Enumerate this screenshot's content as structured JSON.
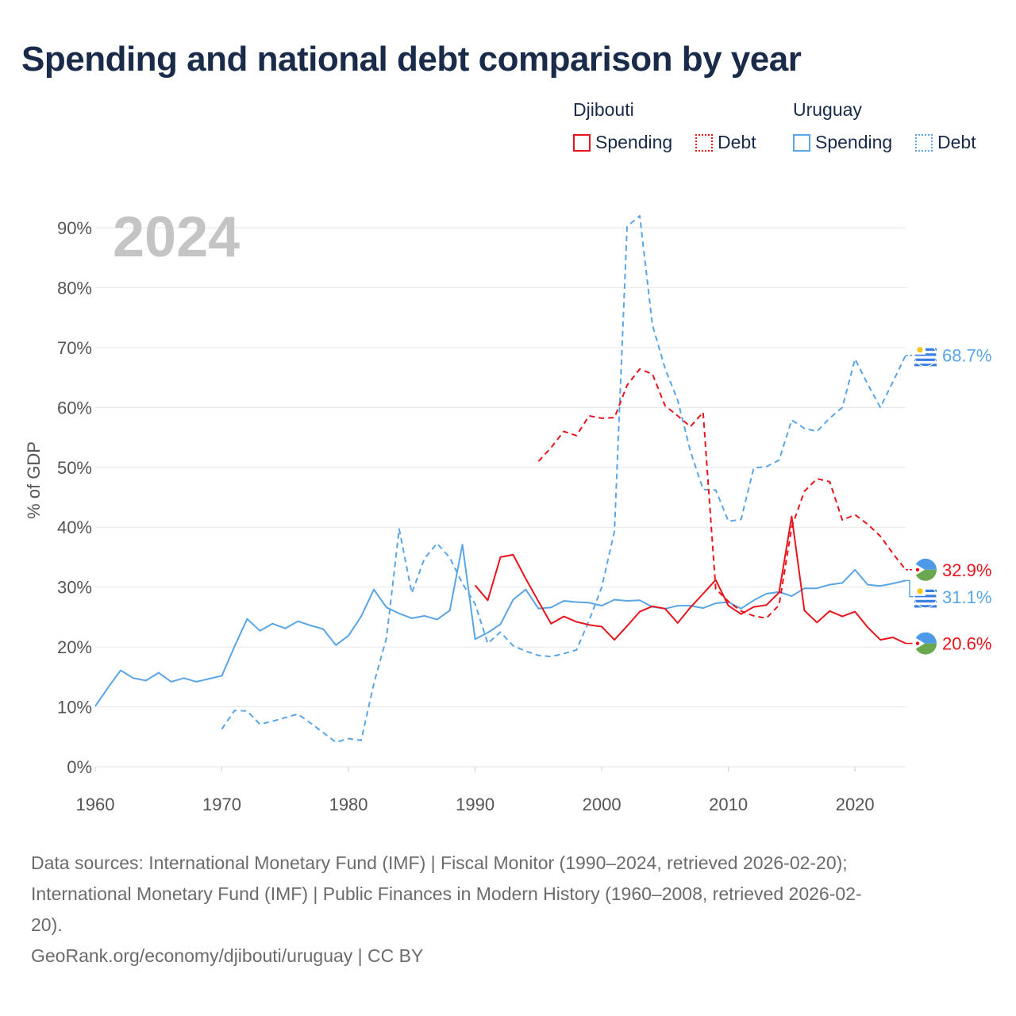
{
  "title": "Spending and national debt comparison by year",
  "legend": {
    "groups": [
      {
        "name": "Djibouti",
        "color": "#e8141c",
        "items": [
          "Spending",
          "Debt"
        ]
      },
      {
        "name": "Uruguay",
        "color": "#5aa5e6",
        "items": [
          "Spending",
          "Debt"
        ]
      }
    ]
  },
  "year_label": "2024",
  "sources": [
    "Data sources: International Monetary Fund (IMF) | Fiscal Monitor (1990–2024, retrieved 2026-02-20);",
    "International Monetary Fund (IMF) | Public Finances in Modern History (1960–2008, retrieved 2026-02-",
    "20).",
    "GeoRank.org/economy/djibouti/uruguay | CC BY"
  ],
  "chart_data": {
    "type": "line",
    "title": "Spending and national debt comparison by year",
    "xlabel": "",
    "ylabel": "% of GDP",
    "xlim": [
      1960,
      2024
    ],
    "ylim": [
      0,
      90
    ],
    "x_ticks": [
      "1960",
      "1970",
      "1980",
      "1990",
      "2000",
      "2010",
      "2020"
    ],
    "y_ticks": [
      "0%",
      "10%",
      "20%",
      "30%",
      "40%",
      "50%",
      "60%",
      "70%",
      "80%",
      "90%"
    ],
    "grid": true,
    "series": [
      {
        "name": "Uruguay Debt",
        "country": "Uruguay",
        "measure": "Debt",
        "color": "#5aa5e6",
        "dashed": true,
        "end_label": "68.7%",
        "points": [
          [
            1970,
            6.3
          ],
          [
            1971,
            9.4
          ],
          [
            1972,
            9.3
          ],
          [
            1973,
            7.1
          ],
          [
            1974,
            7.6
          ],
          [
            1975,
            8.2
          ],
          [
            1976,
            8.8
          ],
          [
            1977,
            7.3
          ],
          [
            1978,
            5.7
          ],
          [
            1979,
            4.1
          ],
          [
            1980,
            4.7
          ],
          [
            1981,
            4.4
          ],
          [
            1982,
            13.9
          ],
          [
            1983,
            21.5
          ],
          [
            1984,
            39.7
          ],
          [
            1985,
            29.0
          ],
          [
            1986,
            34.8
          ],
          [
            1987,
            37.3
          ],
          [
            1988,
            34.9
          ],
          [
            1989,
            30.6
          ],
          [
            1990,
            27.2
          ],
          [
            1991,
            20.6
          ],
          [
            1992,
            22.5
          ],
          [
            1993,
            20.2
          ],
          [
            1994,
            19.3
          ],
          [
            1995,
            18.6
          ],
          [
            1996,
            18.4
          ],
          [
            1997,
            18.9
          ],
          [
            1998,
            19.5
          ],
          [
            1999,
            24.4
          ],
          [
            2000,
            30.0
          ],
          [
            2001,
            39.3
          ],
          [
            2002,
            90.2
          ],
          [
            2003,
            92.0
          ],
          [
            2004,
            73.8
          ],
          [
            2005,
            66.5
          ],
          [
            2006,
            61.2
          ],
          [
            2007,
            52.7
          ],
          [
            2008,
            46.3
          ],
          [
            2009,
            46.2
          ],
          [
            2010,
            41.0
          ],
          [
            2011,
            41.3
          ],
          [
            2012,
            49.9
          ],
          [
            2013,
            50.1
          ],
          [
            2014,
            51.2
          ],
          [
            2015,
            57.9
          ],
          [
            2016,
            56.5
          ],
          [
            2017,
            56.0
          ],
          [
            2018,
            58.2
          ],
          [
            2019,
            60.0
          ],
          [
            2020,
            68.1
          ],
          [
            2021,
            63.9
          ],
          [
            2022,
            60.0
          ],
          [
            2023,
            64.3
          ],
          [
            2024,
            68.7
          ]
        ]
      },
      {
        "name": "Uruguay Spending",
        "country": "Uruguay",
        "measure": "Spending",
        "color": "#5aa5e6",
        "dashed": false,
        "end_label": "31.1%",
        "points": [
          [
            1960,
            10.1
          ],
          [
            1961,
            13.2
          ],
          [
            1962,
            16.1
          ],
          [
            1963,
            14.8
          ],
          [
            1964,
            14.4
          ],
          [
            1965,
            15.7
          ],
          [
            1966,
            14.2
          ],
          [
            1967,
            14.8
          ],
          [
            1968,
            14.2
          ],
          [
            1969,
            14.7
          ],
          [
            1970,
            15.2
          ],
          [
            1971,
            20.1
          ],
          [
            1972,
            24.7
          ],
          [
            1973,
            22.7
          ],
          [
            1974,
            23.9
          ],
          [
            1975,
            23.1
          ],
          [
            1976,
            24.3
          ],
          [
            1977,
            23.6
          ],
          [
            1978,
            23.0
          ],
          [
            1979,
            20.3
          ],
          [
            1980,
            21.9
          ],
          [
            1981,
            25.1
          ],
          [
            1982,
            29.6
          ],
          [
            1983,
            26.6
          ],
          [
            1984,
            25.6
          ],
          [
            1985,
            24.8
          ],
          [
            1986,
            25.2
          ],
          [
            1987,
            24.6
          ],
          [
            1988,
            26.1
          ],
          [
            1989,
            37.1
          ],
          [
            1990,
            21.3
          ],
          [
            1991,
            22.4
          ],
          [
            1992,
            23.8
          ],
          [
            1993,
            27.9
          ],
          [
            1994,
            29.6
          ],
          [
            1995,
            26.4
          ],
          [
            1996,
            26.6
          ],
          [
            1997,
            27.7
          ],
          [
            1998,
            27.5
          ],
          [
            1999,
            27.4
          ],
          [
            2000,
            26.9
          ],
          [
            2001,
            27.9
          ],
          [
            2002,
            27.7
          ],
          [
            2003,
            27.8
          ],
          [
            2004,
            26.7
          ],
          [
            2005,
            26.4
          ],
          [
            2006,
            26.9
          ],
          [
            2007,
            26.9
          ],
          [
            2008,
            26.5
          ],
          [
            2009,
            27.3
          ],
          [
            2010,
            27.5
          ],
          [
            2011,
            26.4
          ],
          [
            2012,
            27.8
          ],
          [
            2013,
            28.9
          ],
          [
            2014,
            29.2
          ],
          [
            2015,
            28.5
          ],
          [
            2016,
            29.8
          ],
          [
            2017,
            29.8
          ],
          [
            2018,
            30.4
          ],
          [
            2019,
            30.7
          ],
          [
            2020,
            32.9
          ],
          [
            2021,
            30.4
          ],
          [
            2022,
            30.2
          ],
          [
            2023,
            30.6
          ],
          [
            2024,
            31.1
          ]
        ]
      },
      {
        "name": "Djibouti Debt",
        "country": "Djibouti",
        "measure": "Debt",
        "color": "#e8141c",
        "dashed": true,
        "end_label": "32.9%",
        "points": [
          [
            1995,
            51.0
          ],
          [
            1996,
            53.3
          ],
          [
            1997,
            56.0
          ],
          [
            1998,
            55.3
          ],
          [
            1999,
            58.6
          ],
          [
            2000,
            58.2
          ],
          [
            2001,
            58.3
          ],
          [
            2002,
            63.7
          ],
          [
            2003,
            66.4
          ],
          [
            2004,
            65.6
          ],
          [
            2005,
            60.3
          ],
          [
            2006,
            58.6
          ],
          [
            2007,
            56.8
          ],
          [
            2008,
            59.2
          ],
          [
            2009,
            29.7
          ],
          [
            2010,
            27.6
          ],
          [
            2011,
            26.0
          ],
          [
            2012,
            25.2
          ],
          [
            2013,
            24.8
          ],
          [
            2014,
            27.0
          ],
          [
            2015,
            40.0
          ],
          [
            2016,
            46.0
          ],
          [
            2017,
            48.1
          ],
          [
            2018,
            47.6
          ],
          [
            2019,
            41.2
          ],
          [
            2020,
            42.1
          ],
          [
            2021,
            40.5
          ],
          [
            2022,
            38.5
          ],
          [
            2023,
            35.6
          ],
          [
            2024,
            32.9
          ]
        ]
      },
      {
        "name": "Djibouti Spending",
        "country": "Djibouti",
        "measure": "Spending",
        "color": "#e8141c",
        "dashed": false,
        "end_label": "20.6%",
        "points": [
          [
            1990,
            30.3
          ],
          [
            1991,
            27.8
          ],
          [
            1992,
            35.0
          ],
          [
            1993,
            35.4
          ],
          [
            1994,
            31.4
          ],
          [
            1995,
            27.6
          ],
          [
            1996,
            23.9
          ],
          [
            1997,
            25.1
          ],
          [
            1998,
            24.2
          ],
          [
            1999,
            23.7
          ],
          [
            2000,
            23.4
          ],
          [
            2001,
            21.2
          ],
          [
            2002,
            23.5
          ],
          [
            2003,
            25.9
          ],
          [
            2004,
            26.8
          ],
          [
            2005,
            26.4
          ],
          [
            2006,
            24.0
          ],
          [
            2007,
            26.6
          ],
          [
            2008,
            28.9
          ],
          [
            2009,
            31.2
          ],
          [
            2010,
            26.9
          ],
          [
            2011,
            25.5
          ],
          [
            2012,
            26.7
          ],
          [
            2013,
            27.0
          ],
          [
            2014,
            29.1
          ],
          [
            2015,
            41.8
          ],
          [
            2016,
            26.1
          ],
          [
            2017,
            24.1
          ],
          [
            2018,
            26.0
          ],
          [
            2019,
            25.1
          ],
          [
            2020,
            25.9
          ],
          [
            2021,
            23.3
          ],
          [
            2022,
            21.2
          ],
          [
            2023,
            21.6
          ],
          [
            2024,
            20.6
          ]
        ]
      }
    ]
  }
}
